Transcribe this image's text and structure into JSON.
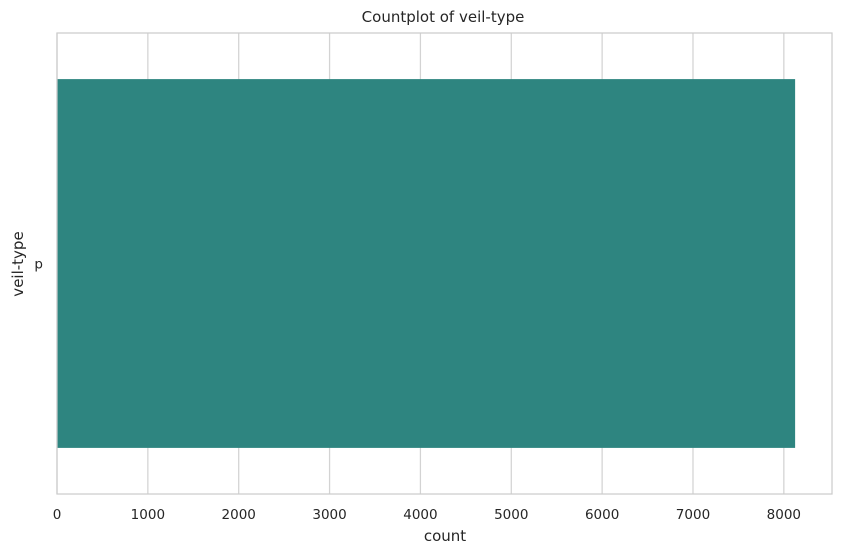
{
  "chart_data": {
    "type": "bar",
    "orientation": "horizontal",
    "title": "Countplot of veil-type",
    "xlabel": "count",
    "ylabel": "veil-type",
    "categories": [
      "p"
    ],
    "values": [
      8124
    ],
    "xlim": [
      0,
      8530
    ],
    "xticks": [
      0,
      1000,
      2000,
      3000,
      4000,
      5000,
      6000,
      7000,
      8000
    ],
    "grid": true,
    "bar_color": "#2e8580",
    "grid_color": "#d3d3d3",
    "spine_color": "#cccccc"
  }
}
